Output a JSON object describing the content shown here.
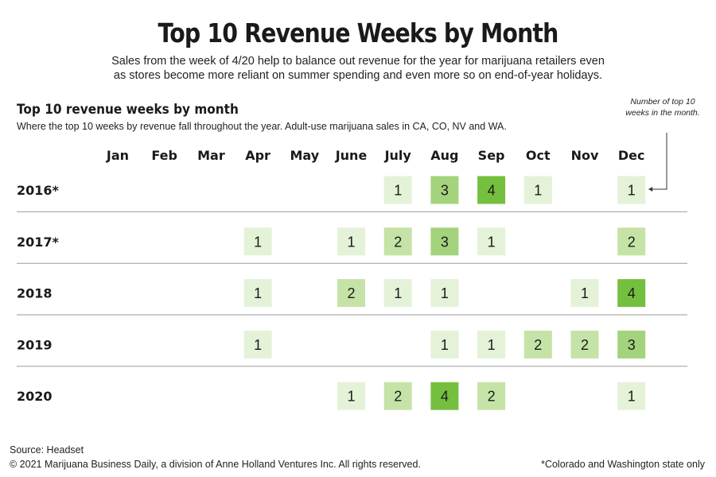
{
  "header": {
    "title": "Top 10 Revenue Weeks by Month",
    "subtitle_line1": "Sales from the week of 4/20 help to balance out revenue for the year for marijuana retailers even",
    "subtitle_line2": "as stores become more reliant on summer spending and even more so on end-of-year holidays."
  },
  "chart_data": {
    "type": "heatmap",
    "title": "Top 10 revenue weeks by month",
    "subtitle": "Where the top 10 weeks by revenue fall throughout the year. Adult-use marijuana sales in CA, CO, NV and WA.",
    "annotation": "Number of top 10 weeks in the month.",
    "columns": [
      "Jan",
      "Feb",
      "Mar",
      "Apr",
      "May",
      "June",
      "July",
      "Aug",
      "Sep",
      "Oct",
      "Nov",
      "Dec"
    ],
    "rows": [
      "2016*",
      "2017*",
      "2018",
      "2019",
      "2020"
    ],
    "values": [
      [
        null,
        null,
        null,
        null,
        null,
        null,
        1,
        3,
        4,
        1,
        null,
        1
      ],
      [
        null,
        null,
        null,
        1,
        null,
        1,
        2,
        3,
        1,
        null,
        null,
        2
      ],
      [
        null,
        null,
        null,
        1,
        null,
        2,
        1,
        1,
        null,
        null,
        1,
        4
      ],
      [
        null,
        null,
        null,
        1,
        null,
        null,
        null,
        1,
        1,
        2,
        2,
        3
      ],
      [
        null,
        null,
        null,
        null,
        null,
        1,
        2,
        4,
        2,
        null,
        null,
        1
      ]
    ],
    "color_scale": {
      "1": "#e4f2d8",
      "2": "#c5e3a6",
      "3": "#a3d37c",
      "4": "#75bf3f"
    }
  },
  "footer": {
    "source": "Source: Headset",
    "copyright": "© 2021 Marijuana Business Daily, a division of Anne Holland Ventures Inc. All rights reserved.",
    "footnote": "*Colorado and Washington state only"
  }
}
